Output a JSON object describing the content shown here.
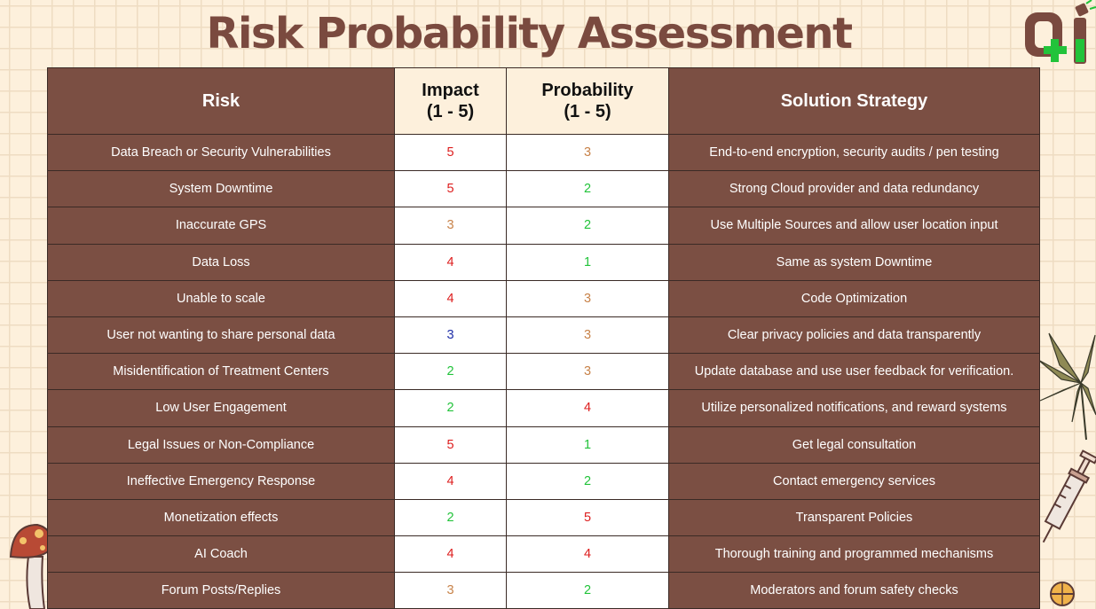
{
  "title": "Risk Probability Assessment",
  "headers": {
    "risk": "Risk",
    "impact": "Impact",
    "impact_scale": "(1 - 5)",
    "probability": "Probability",
    "probability_scale": "(1 - 5)",
    "strategy": "Solution Strategy"
  },
  "score_colors": {
    "1": "#22c33a",
    "2": "#22c33a",
    "3": "#c8834a",
    "3-blue": "#1f2fa8",
    "4": "#dd1d1d",
    "5": "#dd1d1d"
  },
  "rows": [
    {
      "risk": "Data Breach or Security Vulnerabilities",
      "impact": "5",
      "impact_color": "#dd1d1d",
      "probability": "3",
      "probability_color": "#c8834a",
      "strategy": "End-to-end encryption, security audits / pen testing"
    },
    {
      "risk": "System Downtime",
      "impact": "5",
      "impact_color": "#dd1d1d",
      "probability": "2",
      "probability_color": "#22c33a",
      "strategy": "Strong Cloud provider and data redundancy"
    },
    {
      "risk": "Inaccurate GPS",
      "impact": "3",
      "impact_color": "#c8834a",
      "probability": "2",
      "probability_color": "#22c33a",
      "strategy": "Use Multiple Sources and allow user location input"
    },
    {
      "risk": "Data Loss",
      "impact": "4",
      "impact_color": "#dd1d1d",
      "probability": "1",
      "probability_color": "#22c33a",
      "strategy": "Same as system Downtime"
    },
    {
      "risk": "Unable to scale",
      "impact": "4",
      "impact_color": "#dd1d1d",
      "probability": "3",
      "probability_color": "#c8834a",
      "strategy": "Code Optimization"
    },
    {
      "risk": "User not wanting to share personal data",
      "impact": "3",
      "impact_color": "#1f2fa8",
      "probability": "3",
      "probability_color": "#c8834a",
      "strategy": "Clear privacy policies and data transparently"
    },
    {
      "risk": "Misidentification of Treatment Centers",
      "impact": "2",
      "impact_color": "#22c33a",
      "probability": "3",
      "probability_color": "#c8834a",
      "strategy": "Update database and use user feedback for verification."
    },
    {
      "risk": "Low User Engagement",
      "impact": "2",
      "impact_color": "#22c33a",
      "probability": "4",
      "probability_color": "#dd1d1d",
      "strategy": "Utilize personalized notifications, and reward systems"
    },
    {
      "risk": "Legal Issues or Non-Compliance",
      "impact": "5",
      "impact_color": "#dd1d1d",
      "probability": "1",
      "probability_color": "#22c33a",
      "strategy": "Get legal consultation"
    },
    {
      "risk": "Ineffective Emergency Response",
      "impact": "4",
      "impact_color": "#dd1d1d",
      "probability": "2",
      "probability_color": "#22c33a",
      "strategy": "Contact emergency services"
    },
    {
      "risk": "Monetization effects",
      "impact": "2",
      "impact_color": "#22c33a",
      "probability": "5",
      "probability_color": "#dd1d1d",
      "strategy": "Transparent Policies"
    },
    {
      "risk": "AI Coach",
      "impact": "4",
      "impact_color": "#dd1d1d",
      "probability": "4",
      "probability_color": "#dd1d1d",
      "strategy": "Thorough training and programmed mechanisms"
    },
    {
      "risk": "Forum Posts/Replies",
      "impact": "3",
      "impact_color": "#c8834a",
      "probability": "2",
      "probability_color": "#22c33a",
      "strategy": "Moderators and forum safety checks"
    }
  ]
}
